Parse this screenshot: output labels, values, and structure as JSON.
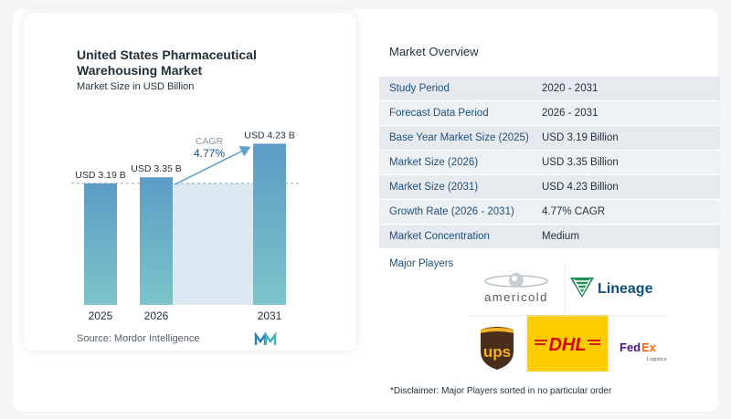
{
  "chart_data": {
    "type": "bar",
    "title": "United States Pharmaceutical Warehousing Market",
    "subtitle": "Market Size in USD Billion",
    "categories": [
      "2025",
      "2026",
      "2031"
    ],
    "values": [
      3.19,
      3.35,
      4.23
    ],
    "data_labels": [
      "USD 3.19 B",
      "USD 3.35 B",
      "USD 4.23 B"
    ],
    "cagr_label": "CAGR",
    "cagr_value": "4.77%",
    "ylim": [
      0,
      4.6
    ],
    "xlabel": "",
    "ylabel": "",
    "legend": "none",
    "grid": false
  },
  "colors": {
    "bar_top": "#5d9cc6",
    "bar_bottom": "#7cc4c9",
    "highlight_region": "#dde8f1",
    "baseline_dashed": "#93a7b5",
    "arrow": "#5fa2ce",
    "label_dark": "#1d4f7c"
  },
  "source": "Source: Mordor Intelligence",
  "overview": {
    "title": "Market Overview",
    "rows": [
      {
        "label": "Study Period",
        "value": "2020 - 2031"
      },
      {
        "label": "Forecast Data Period",
        "value": "2026 - 2031"
      },
      {
        "label": "Base Year Market Size (2025)",
        "value": "USD 3.19 Billion"
      },
      {
        "label": "Market Size (2026)",
        "value": "USD 3.35 Billion"
      },
      {
        "label": "Market Size (2031)",
        "value": "USD 4.23 Billion"
      },
      {
        "label": "Growth Rate (2026 - 2031)",
        "value": "4.77% CAGR"
      },
      {
        "label": "Market Concentration",
        "value": "Medium"
      }
    ]
  },
  "players": {
    "label": "Major Players",
    "logos": [
      "americold",
      "Lineage",
      "UPS",
      "DHL",
      "FedEx Logistics"
    ]
  },
  "disclaimer": "*Disclaimer: Major Players sorted in no particular order"
}
